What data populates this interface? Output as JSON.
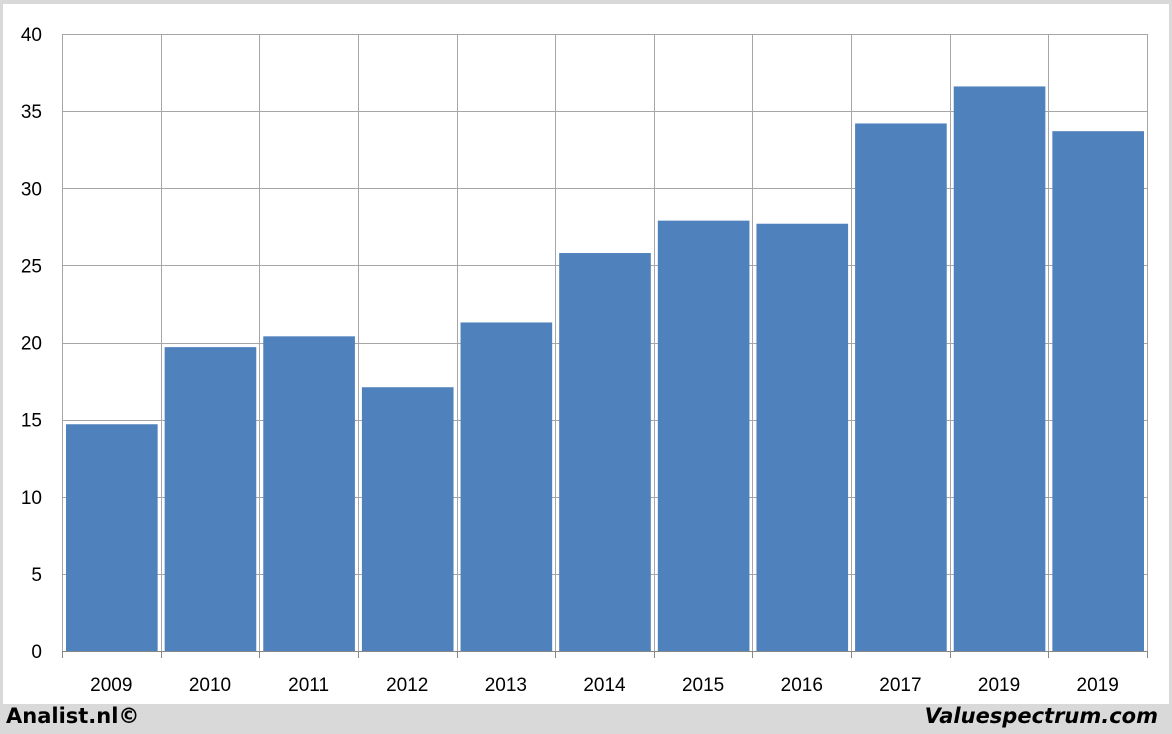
{
  "chart_data": {
    "type": "bar",
    "categories": [
      "2009",
      "2010",
      "2011",
      "2012",
      "2013",
      "2014",
      "2015",
      "2016",
      "2017",
      "2019",
      "2019"
    ],
    "values": [
      14.7,
      19.7,
      20.4,
      17.1,
      21.3,
      25.8,
      27.9,
      27.7,
      34.2,
      36.6,
      33.7
    ],
    "title": "",
    "xlabel": "",
    "ylabel": "",
    "ylim": [
      0,
      40
    ],
    "yticks": [
      0,
      5,
      10,
      15,
      20,
      25,
      30,
      35,
      40
    ],
    "grid": true,
    "bar_color": "#4f81bd",
    "grid_color": "#a6a6a6"
  },
  "footer": {
    "left_text": "Analist.nl©",
    "right_text": "Valuespectrum.com"
  }
}
